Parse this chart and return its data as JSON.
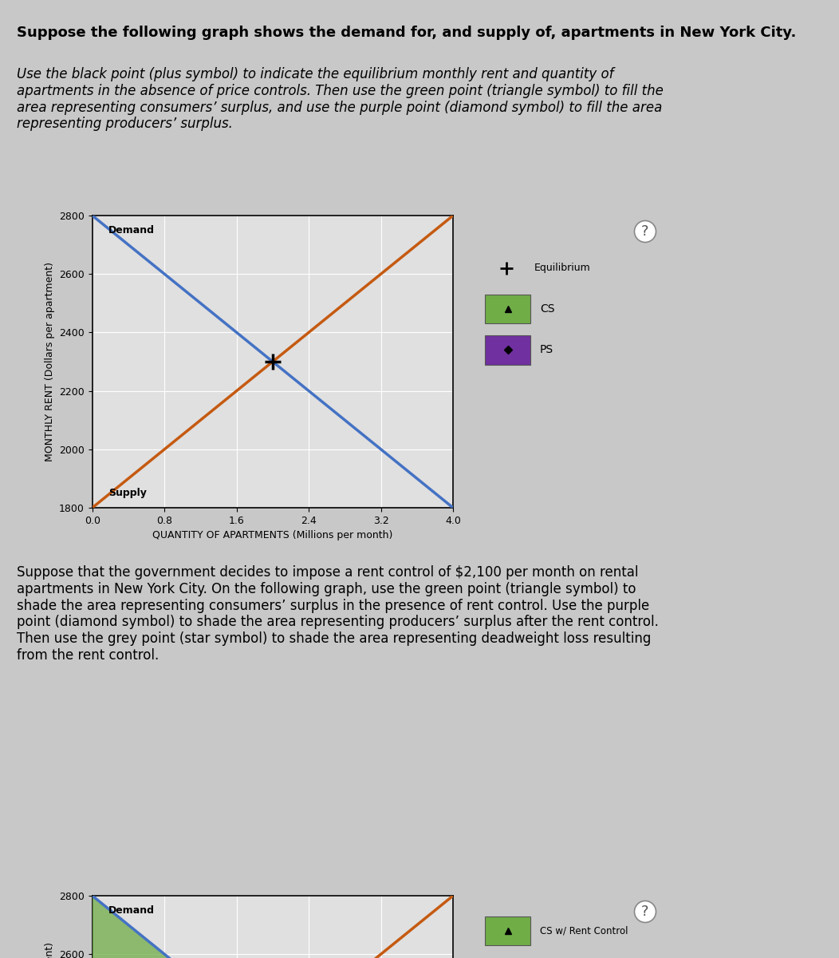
{
  "title1": "Suppose the following graph shows the demand for, and supply of, apartments in New York City.",
  "instruction1": "Use the black point (plus symbol) to indicate the equilibrium monthly rent and quantity of\napartments in the absence of price controls. Then use the green point (triangle symbol) to fill the\narea representing consumers’ surplus, and use the purple point (diamond symbol) to fill the area\nrepresenting producers’ surplus.",
  "instruction2": "Suppose that the government decides to impose a rent control of $2,100 per month on rental\napartments in New York City. On the following graph, use the green point (triangle symbol) to\nshade the area representing consumers’ surplus in the presence of rent control. Use the purple\npoint (diamond symbol) to shade the area representing producers’ surplus after the rent control.\nThen use the grey point (star symbol) to shade the area representing deadweight loss resulting\nfrom the rent control.",
  "ylabel": "MONTHLY RENT (Dollars per apartment)",
  "xlabel": "QUANTITY OF APARTMENTS (Millions per month)",
  "ylim": [
    1800,
    2800
  ],
  "xlim": [
    0,
    4.0
  ],
  "yticks": [
    1800,
    2000,
    2200,
    2400,
    2600,
    2800
  ],
  "xticks": [
    0,
    0.8,
    1.6,
    2.4,
    3.2,
    4.0
  ],
  "demand_slope": -250,
  "demand_intercept": 2800,
  "supply_slope": 250,
  "supply_intercept": 1800,
  "equilibrium_x": 2.0,
  "equilibrium_y": 2300,
  "rent_control": 2100,
  "demand_color": "#4472C4",
  "supply_color": "#C55A11",
  "cs_color": "#70AD47",
  "ps_color": "#7030A0",
  "dwl_color": "#7F7F7F",
  "bg_color": "#C8C8C8",
  "plot_bg_color": "#E0E0E0",
  "panel_bg_color": "#D8D8D8",
  "grid_color": "#FFFFFF",
  "font_size_main_title": 13,
  "font_size_instruction": 12,
  "font_size_label": 9,
  "font_size_tick": 9,
  "font_size_legend": 10
}
